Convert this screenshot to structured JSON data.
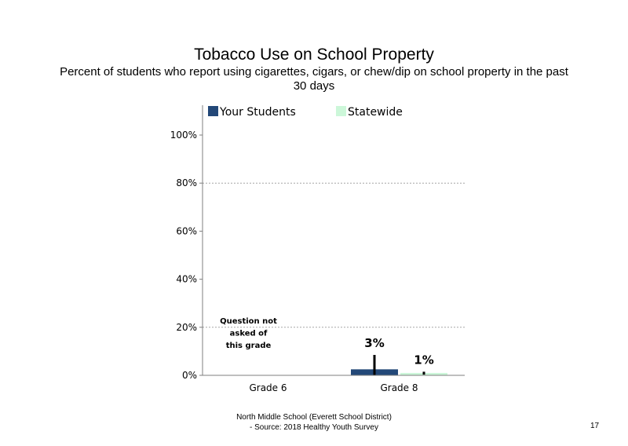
{
  "slide": {
    "footer_line1": "North Middle School (Everett School District)",
    "footer_line2": "- Source: 2018 Healthy Youth Survey",
    "page_number": "17"
  },
  "chart_data": {
    "type": "bar",
    "title": "Tobacco Use on School Property",
    "subtitle": "Percent of students who report using cigarettes, cigars, or chew/dip on school property in the past 30 days",
    "categories": [
      "Grade 6",
      "Grade 8"
    ],
    "series": [
      {
        "name": "Your Students",
        "color": "#234878",
        "values": [
          null,
          2.5
        ],
        "labels": [
          "",
          "3%"
        ],
        "error": [
          null,
          [
            0,
            8.5
          ]
        ]
      },
      {
        "name": "Statewide",
        "color": "#ccf7d9",
        "values": [
          null,
          1.0
        ],
        "labels": [
          "",
          "1%"
        ],
        "error": [
          null,
          [
            0.3,
            1.5
          ]
        ]
      }
    ],
    "ylim": [
      0,
      100
    ],
    "yticks": [
      0,
      20,
      40,
      60,
      80,
      100
    ],
    "ytick_labels": [
      "0%",
      "20%",
      "40%",
      "60%",
      "80%",
      "100%"
    ],
    "gridlines": [
      20,
      80
    ],
    "legend_position": "top",
    "annotations": [
      {
        "category": "Grade 6",
        "lines": [
          "Question not",
          "asked of",
          "this grade"
        ]
      }
    ]
  }
}
